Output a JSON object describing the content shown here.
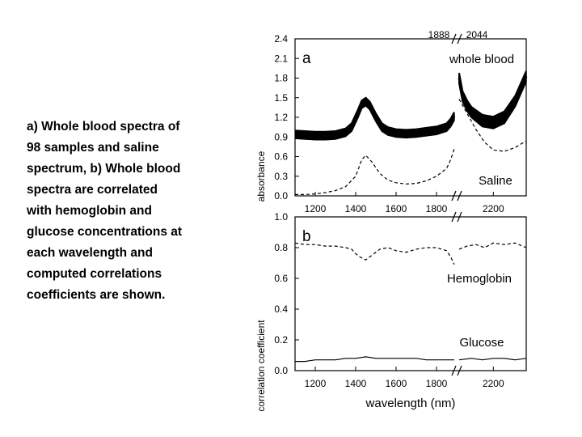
{
  "caption": {
    "lines": [
      "a) Whole blood spectra of",
      "98 samples and saline",
      "spectrum, b) Whole blood",
      "spectra are correlated",
      "with hemoglobin and",
      "glucose concentrations at",
      "each wavelength and",
      "computed correlations",
      "coefficients are shown."
    ]
  },
  "chart_data": [
    {
      "type": "line",
      "panel_label": "a",
      "ylabel": "absorbance",
      "xlabel": "",
      "xlim": [
        1100,
        2350
      ],
      "ylim": [
        0,
        2.4
      ],
      "axis_break": {
        "after": 1888,
        "before": 2044,
        "break_labels": [
          "1888",
          "2044"
        ]
      },
      "xticks": [
        1200,
        1400,
        1600,
        1800,
        2200
      ],
      "yticks": [
        "0.0",
        "0.3",
        "0.6",
        "0.9",
        "1.2",
        "1.5",
        "1.8",
        "2.1",
        "2.4"
      ],
      "ytick_values": [
        0,
        0.3,
        0.6,
        0.9,
        1.2,
        1.5,
        1.8,
        2.1,
        2.4
      ],
      "annotations": [
        "whole blood",
        "Saline"
      ],
      "series": [
        {
          "name": "whole blood",
          "line_style": "solid",
          "band_samples": 98,
          "x": [
            1100,
            1150,
            1200,
            1250,
            1300,
            1350,
            1380,
            1410,
            1430,
            1450,
            1470,
            1500,
            1530,
            1560,
            1600,
            1650,
            1700,
            1750,
            1800,
            1850,
            1870,
            1888,
            2044,
            2060,
            2080,
            2100,
            2150,
            2200,
            2250,
            2300,
            2350
          ],
          "y": [
            0.94,
            0.93,
            0.92,
            0.92,
            0.93,
            0.97,
            1.05,
            1.25,
            1.4,
            1.44,
            1.38,
            1.2,
            1.05,
            0.99,
            0.96,
            0.95,
            0.96,
            0.98,
            1.0,
            1.05,
            1.12,
            1.22,
            1.8,
            1.52,
            1.38,
            1.28,
            1.15,
            1.12,
            1.2,
            1.45,
            1.83
          ],
          "spread": [
            0.06,
            0.06,
            0.06,
            0.06,
            0.06,
            0.06,
            0.06,
            0.06,
            0.06,
            0.06,
            0.06,
            0.06,
            0.06,
            0.06,
            0.06,
            0.06,
            0.06,
            0.06,
            0.06,
            0.06,
            0.06,
            0.06,
            0.08,
            0.08,
            0.08,
            0.08,
            0.09,
            0.09,
            0.09,
            0.08,
            0.08
          ]
        },
        {
          "name": "Saline",
          "line_style": "dashed",
          "x": [
            1100,
            1150,
            1200,
            1250,
            1300,
            1350,
            1400,
            1430,
            1450,
            1480,
            1520,
            1560,
            1600,
            1650,
            1700,
            1750,
            1800,
            1850,
            1870,
            1888,
            2044,
            2080,
            2120,
            2160,
            2200,
            2250,
            2300,
            2350
          ],
          "y": [
            0.02,
            0.02,
            0.03,
            0.05,
            0.08,
            0.14,
            0.3,
            0.55,
            0.62,
            0.52,
            0.34,
            0.24,
            0.2,
            0.18,
            0.19,
            0.23,
            0.3,
            0.42,
            0.55,
            0.72,
            1.48,
            1.26,
            1.02,
            0.82,
            0.7,
            0.68,
            0.74,
            0.84
          ]
        }
      ]
    },
    {
      "type": "line",
      "panel_label": "b",
      "ylabel": "correlation coefficient",
      "xlabel": "wavelength (nm)",
      "xlim": [
        1100,
        2350
      ],
      "ylim": [
        0,
        1.0
      ],
      "xticks": [
        1200,
        1400,
        1600,
        1800,
        2200
      ],
      "yticks": [
        "0.0",
        "0.2",
        "0.4",
        "0.6",
        "0.8",
        "1.0"
      ],
      "ytick_values": [
        0,
        0.2,
        0.4,
        0.6,
        0.8,
        1.0
      ],
      "annotations": [
        "Hemoglobin",
        "Glucose"
      ],
      "series": [
        {
          "name": "Hemoglobin",
          "line_style": "dashed",
          "x": [
            1100,
            1150,
            1200,
            1250,
            1300,
            1350,
            1380,
            1400,
            1420,
            1450,
            1480,
            1520,
            1560,
            1600,
            1650,
            1700,
            1750,
            1800,
            1850,
            1870,
            1888,
            2044,
            2080,
            2120,
            2160,
            2200,
            2250,
            2300,
            2350
          ],
          "y": [
            0.83,
            0.82,
            0.82,
            0.81,
            0.81,
            0.8,
            0.79,
            0.76,
            0.74,
            0.72,
            0.75,
            0.79,
            0.8,
            0.78,
            0.77,
            0.79,
            0.8,
            0.8,
            0.78,
            0.74,
            0.69,
            0.79,
            0.81,
            0.82,
            0.8,
            0.83,
            0.82,
            0.83,
            0.8
          ]
        },
        {
          "name": "Glucose",
          "line_style": "solid",
          "x": [
            1100,
            1150,
            1200,
            1250,
            1300,
            1350,
            1400,
            1450,
            1500,
            1550,
            1600,
            1650,
            1700,
            1750,
            1800,
            1850,
            1888,
            2044,
            2100,
            2150,
            2200,
            2250,
            2300,
            2350
          ],
          "y": [
            0.06,
            0.06,
            0.07,
            0.07,
            0.07,
            0.08,
            0.08,
            0.09,
            0.08,
            0.08,
            0.08,
            0.08,
            0.08,
            0.07,
            0.07,
            0.07,
            0.07,
            0.07,
            0.08,
            0.07,
            0.08,
            0.08,
            0.07,
            0.08
          ]
        }
      ]
    }
  ]
}
